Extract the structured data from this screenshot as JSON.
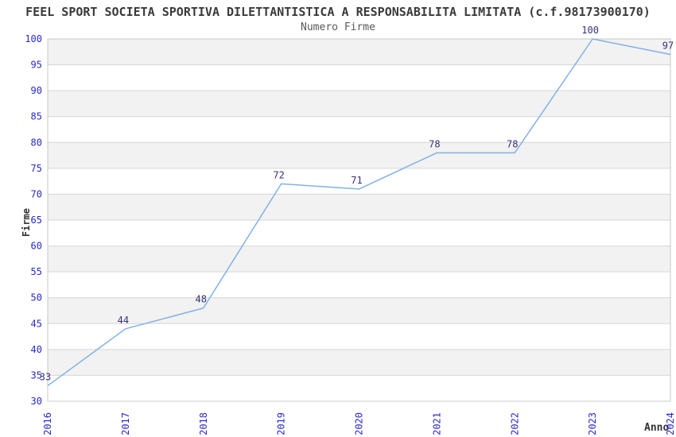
{
  "chart_data": {
    "type": "line",
    "title": "FEEL SPORT SOCIETA SPORTIVA DILETTANTISTICA A RESPONSABILITA LIMITATA (c.f.98173900170)",
    "subtitle": "Numero Firme",
    "xlabel": "Anno",
    "ylabel": "Firme",
    "categories": [
      "2016",
      "2017",
      "2018",
      "2019",
      "2020",
      "2021",
      "2022",
      "2023",
      "2024"
    ],
    "series": [
      {
        "name": "Numero Firme",
        "values": [
          33,
          44,
          48,
          72,
          71,
          78,
          78,
          100,
          97
        ]
      }
    ],
    "ylim": [
      30,
      100
    ],
    "ytick_step": 5,
    "grid": "horizontal",
    "legend": "none",
    "band_fill": "alternating-horizontal",
    "colors": {
      "line": "#80b1e8",
      "tick_label": "#2929cc",
      "point_label": "#333377",
      "band_gray": "#f2f2f2",
      "band_white": "#ffffff",
      "gridline": "#d6d6d6",
      "plot_border": "#c8c8c8",
      "title": "#3a3a3a",
      "subtitle": "#595959",
      "axis_title": "#333333"
    }
  }
}
